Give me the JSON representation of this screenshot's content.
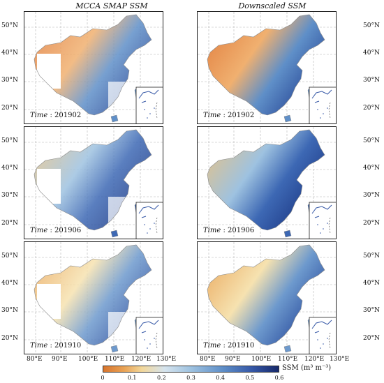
{
  "columns": {
    "left_title": "MCCA SMAP SSM",
    "right_title": "Downscaled SSM"
  },
  "rows": [
    {
      "time_prefix": "Time",
      "time_value": " : 201902"
    },
    {
      "time_prefix": "Time",
      "time_value": " : 201906"
    },
    {
      "time_prefix": "Time",
      "time_value": " : 201910"
    }
  ],
  "lat_labels": [
    "50°N",
    "40°N",
    "30°N",
    "20°N"
  ],
  "lon_labels": [
    "80°E",
    "90°E",
    "100°E",
    "110°E",
    "120°E",
    "130°E"
  ],
  "colorbar": {
    "label": "SSM (m³ m⁻³)",
    "ticks": [
      "0",
      "0.1",
      "0.2",
      "0.3",
      "0.4",
      "0.5",
      "0.6"
    ],
    "colors": {
      "dry": "#d8752e",
      "mid": "#f2d79a",
      "wet": "#17296a"
    }
  }
}
